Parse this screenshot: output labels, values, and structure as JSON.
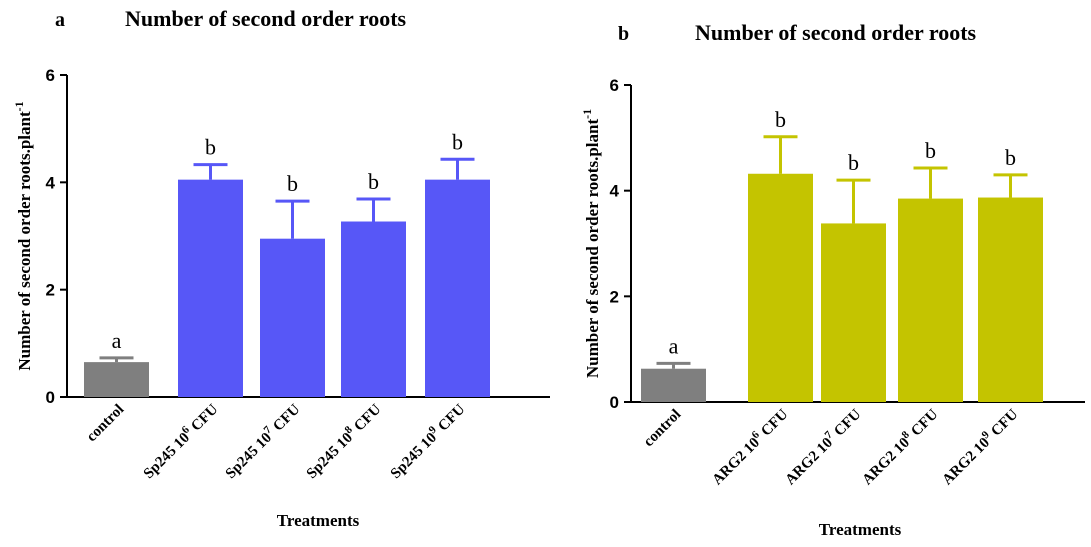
{
  "chart_data": [
    {
      "type": "bar",
      "panel_label": "a",
      "title": "Number of second order roots",
      "xlabel": "Treatments",
      "ylabel": "Number of second order roots.plant",
      "ylabel_sup": "-1",
      "ylim": [
        0,
        6
      ],
      "yticks": [
        0,
        2,
        4,
        6
      ],
      "categories": [
        {
          "base": "control",
          "sup": "",
          "tail": ""
        },
        {
          "base": "Sp245 10",
          "sup": "6",
          "tail": " CFU"
        },
        {
          "base": "Sp245 10",
          "sup": "7",
          "tail": " CFU"
        },
        {
          "base": "Sp245 10",
          "sup": "8",
          "tail": " CFU"
        },
        {
          "base": "Sp245 10",
          "sup": "9",
          "tail": " CFU"
        }
      ],
      "values": [
        0.65,
        4.05,
        2.95,
        3.27,
        4.05
      ],
      "errors": [
        0.08,
        0.28,
        0.7,
        0.42,
        0.38
      ],
      "significance": [
        "a",
        "b",
        "b",
        "b",
        "b"
      ],
      "colors": [
        "#7f7f7f",
        "#5757f7",
        "#5757f7",
        "#5757f7",
        "#5757f7"
      ]
    },
    {
      "type": "bar",
      "panel_label": "b",
      "title": "Number of second order roots",
      "xlabel": "Treatments",
      "ylabel": "Number of second order roots.plant",
      "ylabel_sup": "-1",
      "ylim": [
        0,
        6
      ],
      "yticks": [
        0,
        2,
        4,
        6
      ],
      "categories": [
        {
          "base": "control",
          "sup": "",
          "tail": ""
        },
        {
          "base": "ARG2 10",
          "sup": "6",
          "tail": " CFU"
        },
        {
          "base": "ARG2 10",
          "sup": "7",
          "tail": " CFU"
        },
        {
          "base": "ARG2 10",
          "sup": "8",
          "tail": " CFU"
        },
        {
          "base": "ARG2 10",
          "sup": "9",
          "tail": " CFU"
        }
      ],
      "values": [
        0.63,
        4.32,
        3.38,
        3.85,
        3.87
      ],
      "errors": [
        0.1,
        0.7,
        0.82,
        0.58,
        0.43
      ],
      "significance": [
        "a",
        "b",
        "b",
        "b",
        "b"
      ],
      "colors": [
        "#7f7f7f",
        "#c4c400",
        "#c4c400",
        "#c4c400",
        "#c4c400"
      ]
    }
  ]
}
